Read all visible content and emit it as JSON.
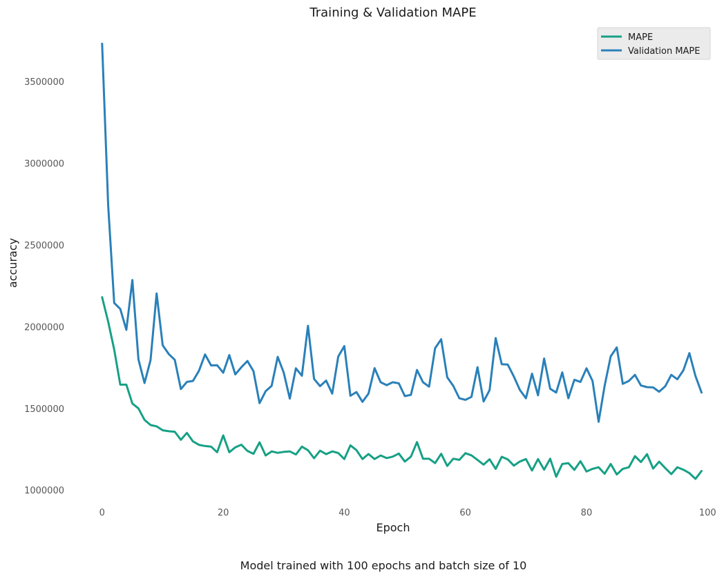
{
  "chart_data": {
    "type": "line",
    "title": "Training & Validation MAPE",
    "xlabel": "Epoch",
    "ylabel": "accuracy",
    "caption": "Model trained with 100 epochs and batch size of 10",
    "xlim": [
      -5,
      101
    ],
    "ylim": [
      925000,
      3850000
    ],
    "x_ticks": [
      0,
      20,
      40,
      60,
      80,
      100
    ],
    "y_ticks": [
      1000000,
      1500000,
      2000000,
      2500000,
      3000000,
      3500000
    ],
    "grid": false,
    "legend_position": "top-right",
    "x": [
      0,
      1,
      2,
      3,
      4,
      5,
      6,
      7,
      8,
      9,
      10,
      11,
      12,
      13,
      14,
      15,
      16,
      17,
      18,
      19,
      20,
      21,
      22,
      23,
      24,
      25,
      26,
      27,
      28,
      29,
      30,
      31,
      32,
      33,
      34,
      35,
      36,
      37,
      38,
      39,
      40,
      41,
      42,
      43,
      44,
      45,
      46,
      47,
      48,
      49,
      50,
      51,
      52,
      53,
      54,
      55,
      56,
      57,
      58,
      59,
      60,
      61,
      62,
      63,
      64,
      65,
      66,
      67,
      68,
      69,
      70,
      71,
      72,
      73,
      74,
      75,
      76,
      77,
      78,
      79,
      80,
      81,
      82,
      83,
      84,
      85,
      86,
      87,
      88,
      89,
      90,
      91,
      92,
      93,
      94,
      95,
      96,
      97,
      98,
      99
    ],
    "series": [
      {
        "name": "MAPE",
        "color": "#16a085",
        "values": [
          2180000,
          2030000,
          1860000,
          1645000,
          1645000,
          1530000,
          1500000,
          1430000,
          1398000,
          1390000,
          1366000,
          1360000,
          1357000,
          1308000,
          1350000,
          1298000,
          1277000,
          1270000,
          1266000,
          1232000,
          1335000,
          1232000,
          1262000,
          1278000,
          1240000,
          1222000,
          1292000,
          1212000,
          1237000,
          1228000,
          1234000,
          1237000,
          1218000,
          1266000,
          1244000,
          1195000,
          1241000,
          1220000,
          1237000,
          1227000,
          1190000,
          1274000,
          1245000,
          1190000,
          1221000,
          1190000,
          1212000,
          1196000,
          1205000,
          1224000,
          1175000,
          1205000,
          1294000,
          1192000,
          1192000,
          1165000,
          1222000,
          1148000,
          1192000,
          1185000,
          1226000,
          1213000,
          1185000,
          1156000,
          1189000,
          1130000,
          1204000,
          1188000,
          1150000,
          1175000,
          1190000,
          1120000,
          1190000,
          1125000,
          1192000,
          1082000,
          1160000,
          1165000,
          1124000,
          1177000,
          1114000,
          1130000,
          1140000,
          1100000,
          1160000,
          1096000,
          1130000,
          1140000,
          1208000,
          1172000,
          1220000,
          1132000,
          1174000,
          1135000,
          1098000,
          1140000,
          1125000,
          1104000,
          1069000,
          1117000
        ]
      },
      {
        "name": "Validation MAPE",
        "color": "#2980b9",
        "values": [
          3730000,
          2740000,
          2145000,
          2108000,
          1980000,
          2285000,
          1800000,
          1655000,
          1795000,
          2203000,
          1886000,
          1833000,
          1797000,
          1618000,
          1662000,
          1668000,
          1730000,
          1830000,
          1763000,
          1764000,
          1718000,
          1826000,
          1708000,
          1752000,
          1790000,
          1728000,
          1532000,
          1605000,
          1638000,
          1815000,
          1719000,
          1560000,
          1745000,
          1700000,
          2005000,
          1680000,
          1636000,
          1670000,
          1590000,
          1817000,
          1881000,
          1577000,
          1600000,
          1540000,
          1590000,
          1746000,
          1660000,
          1642000,
          1660000,
          1653000,
          1575000,
          1583000,
          1735000,
          1660000,
          1633000,
          1868000,
          1923000,
          1690000,
          1638000,
          1562000,
          1552000,
          1570000,
          1752000,
          1542000,
          1612000,
          1930000,
          1770000,
          1768000,
          1695000,
          1613000,
          1562000,
          1712000,
          1580000,
          1805000,
          1620000,
          1597000,
          1720000,
          1562000,
          1675000,
          1662000,
          1745000,
          1668000,
          1418000,
          1638000,
          1818000,
          1873000,
          1650000,
          1668000,
          1705000,
          1640000,
          1630000,
          1628000,
          1602000,
          1635000,
          1705000,
          1678000,
          1733000,
          1838000,
          1698000,
          1597000
        ]
      }
    ]
  }
}
